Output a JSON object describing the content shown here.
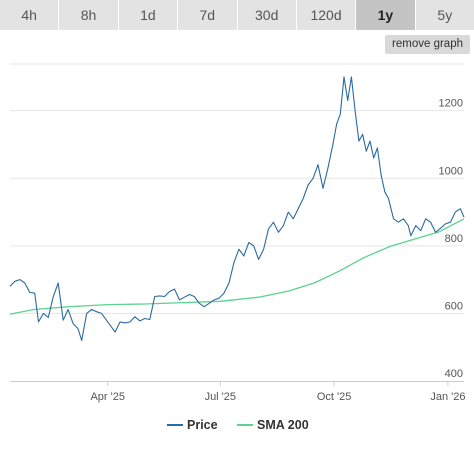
{
  "tabs": [
    "4h",
    "8h",
    "1d",
    "7d",
    "30d",
    "120d",
    "1y",
    "5y"
  ],
  "active_tab": "1y",
  "remove_graph_label": "remove graph",
  "chart_data": {
    "type": "line",
    "x_type": "date",
    "x_range": [
      "2025-01-12",
      "2026-01-14"
    ],
    "ylim": [
      400,
      1350
    ],
    "y_ticks": [
      {
        "value": 400,
        "label": "400"
      },
      {
        "value": 600,
        "label": "600"
      },
      {
        "value": 800,
        "label": "800"
      },
      {
        "value": 1000,
        "label": "1000"
      },
      {
        "value": 1200,
        "label": "1200"
      }
    ],
    "x_ticks": [
      {
        "value": "2025-04-01",
        "label": "Apr '25"
      },
      {
        "value": "2025-07-01",
        "label": "Jul '25"
      },
      {
        "value": "2025-10-01",
        "label": "Oct '25"
      },
      {
        "value": "2026-01-01",
        "label": "Jan '26"
      }
    ],
    "grid": "horizontal",
    "legend_position": "bottom",
    "series": [
      {
        "name": "Price",
        "color": "#2b6a9e",
        "points": [
          [
            "2025-01-12",
            680
          ],
          [
            "2025-01-16",
            695
          ],
          [
            "2025-01-20",
            700
          ],
          [
            "2025-01-24",
            690
          ],
          [
            "2025-01-28",
            662
          ],
          [
            "2025-02-01",
            660
          ],
          [
            "2025-02-04",
            575
          ],
          [
            "2025-02-08",
            600
          ],
          [
            "2025-02-12",
            588
          ],
          [
            "2025-02-16",
            650
          ],
          [
            "2025-02-20",
            690
          ],
          [
            "2025-02-24",
            580
          ],
          [
            "2025-02-28",
            612
          ],
          [
            "2025-03-04",
            570
          ],
          [
            "2025-03-08",
            555
          ],
          [
            "2025-03-11",
            520
          ],
          [
            "2025-03-15",
            600
          ],
          [
            "2025-03-19",
            612
          ],
          [
            "2025-03-23",
            605
          ],
          [
            "2025-03-27",
            600
          ],
          [
            "2025-03-31",
            580
          ],
          [
            "2025-04-04",
            560
          ],
          [
            "2025-04-07",
            545
          ],
          [
            "2025-04-11",
            575
          ],
          [
            "2025-04-15",
            572
          ],
          [
            "2025-04-19",
            575
          ],
          [
            "2025-04-23",
            590
          ],
          [
            "2025-04-27",
            578
          ],
          [
            "2025-05-01",
            585
          ],
          [
            "2025-05-05",
            582
          ],
          [
            "2025-05-09",
            650
          ],
          [
            "2025-05-13",
            652
          ],
          [
            "2025-05-17",
            650
          ],
          [
            "2025-05-21",
            665
          ],
          [
            "2025-05-25",
            672
          ],
          [
            "2025-05-29",
            640
          ],
          [
            "2025-06-02",
            648
          ],
          [
            "2025-06-06",
            656
          ],
          [
            "2025-06-10",
            650
          ],
          [
            "2025-06-14",
            630
          ],
          [
            "2025-06-18",
            620
          ],
          [
            "2025-06-22",
            630
          ],
          [
            "2025-06-26",
            640
          ],
          [
            "2025-06-30",
            645
          ],
          [
            "2025-07-04",
            660
          ],
          [
            "2025-07-08",
            690
          ],
          [
            "2025-07-12",
            750
          ],
          [
            "2025-07-16",
            790
          ],
          [
            "2025-07-20",
            770
          ],
          [
            "2025-07-24",
            810
          ],
          [
            "2025-07-28",
            800
          ],
          [
            "2025-08-01",
            760
          ],
          [
            "2025-08-05",
            790
          ],
          [
            "2025-08-09",
            850
          ],
          [
            "2025-08-13",
            870
          ],
          [
            "2025-08-17",
            840
          ],
          [
            "2025-08-21",
            860
          ],
          [
            "2025-08-25",
            900
          ],
          [
            "2025-08-29",
            880
          ],
          [
            "2025-09-02",
            910
          ],
          [
            "2025-09-06",
            940
          ],
          [
            "2025-09-10",
            980
          ],
          [
            "2025-09-14",
            1000
          ],
          [
            "2025-09-18",
            1040
          ],
          [
            "2025-09-22",
            970
          ],
          [
            "2025-09-26",
            1030
          ],
          [
            "2025-09-30",
            1100
          ],
          [
            "2025-10-03",
            1160
          ],
          [
            "2025-10-06",
            1190
          ],
          [
            "2025-10-09",
            1300
          ],
          [
            "2025-10-12",
            1230
          ],
          [
            "2025-10-15",
            1300
          ],
          [
            "2025-10-18",
            1200
          ],
          [
            "2025-10-21",
            1110
          ],
          [
            "2025-10-24",
            1130
          ],
          [
            "2025-10-27",
            1080
          ],
          [
            "2025-10-30",
            1110
          ],
          [
            "2025-11-02",
            1060
          ],
          [
            "2025-11-05",
            1090
          ],
          [
            "2025-11-08",
            1010
          ],
          [
            "2025-11-11",
            960
          ],
          [
            "2025-11-14",
            940
          ],
          [
            "2025-11-18",
            880
          ],
          [
            "2025-11-22",
            870
          ],
          [
            "2025-11-26",
            880
          ],
          [
            "2025-11-30",
            860
          ],
          [
            "2025-12-02",
            830
          ],
          [
            "2025-12-06",
            860
          ],
          [
            "2025-12-10",
            845
          ],
          [
            "2025-12-14",
            880
          ],
          [
            "2025-12-18",
            870
          ],
          [
            "2025-12-22",
            840
          ],
          [
            "2025-12-26",
            852
          ],
          [
            "2025-12-30",
            865
          ],
          [
            "2026-01-03",
            870
          ],
          [
            "2026-01-07",
            900
          ],
          [
            "2026-01-11",
            910
          ],
          [
            "2026-01-14",
            885
          ]
        ]
      },
      {
        "name": "SMA 200",
        "color": "#5cd38f",
        "points": [
          [
            "2025-01-12",
            598
          ],
          [
            "2025-02-01",
            612
          ],
          [
            "2025-03-01",
            620
          ],
          [
            "2025-04-01",
            626
          ],
          [
            "2025-05-01",
            628
          ],
          [
            "2025-06-01",
            632
          ],
          [
            "2025-07-01",
            636
          ],
          [
            "2025-08-01",
            648
          ],
          [
            "2025-08-25",
            666
          ],
          [
            "2025-09-15",
            690
          ],
          [
            "2025-10-05",
            725
          ],
          [
            "2025-10-25",
            765
          ],
          [
            "2025-11-15",
            798
          ],
          [
            "2025-12-05",
            820
          ],
          [
            "2025-12-25",
            842
          ],
          [
            "2026-01-14",
            880
          ]
        ]
      }
    ]
  }
}
